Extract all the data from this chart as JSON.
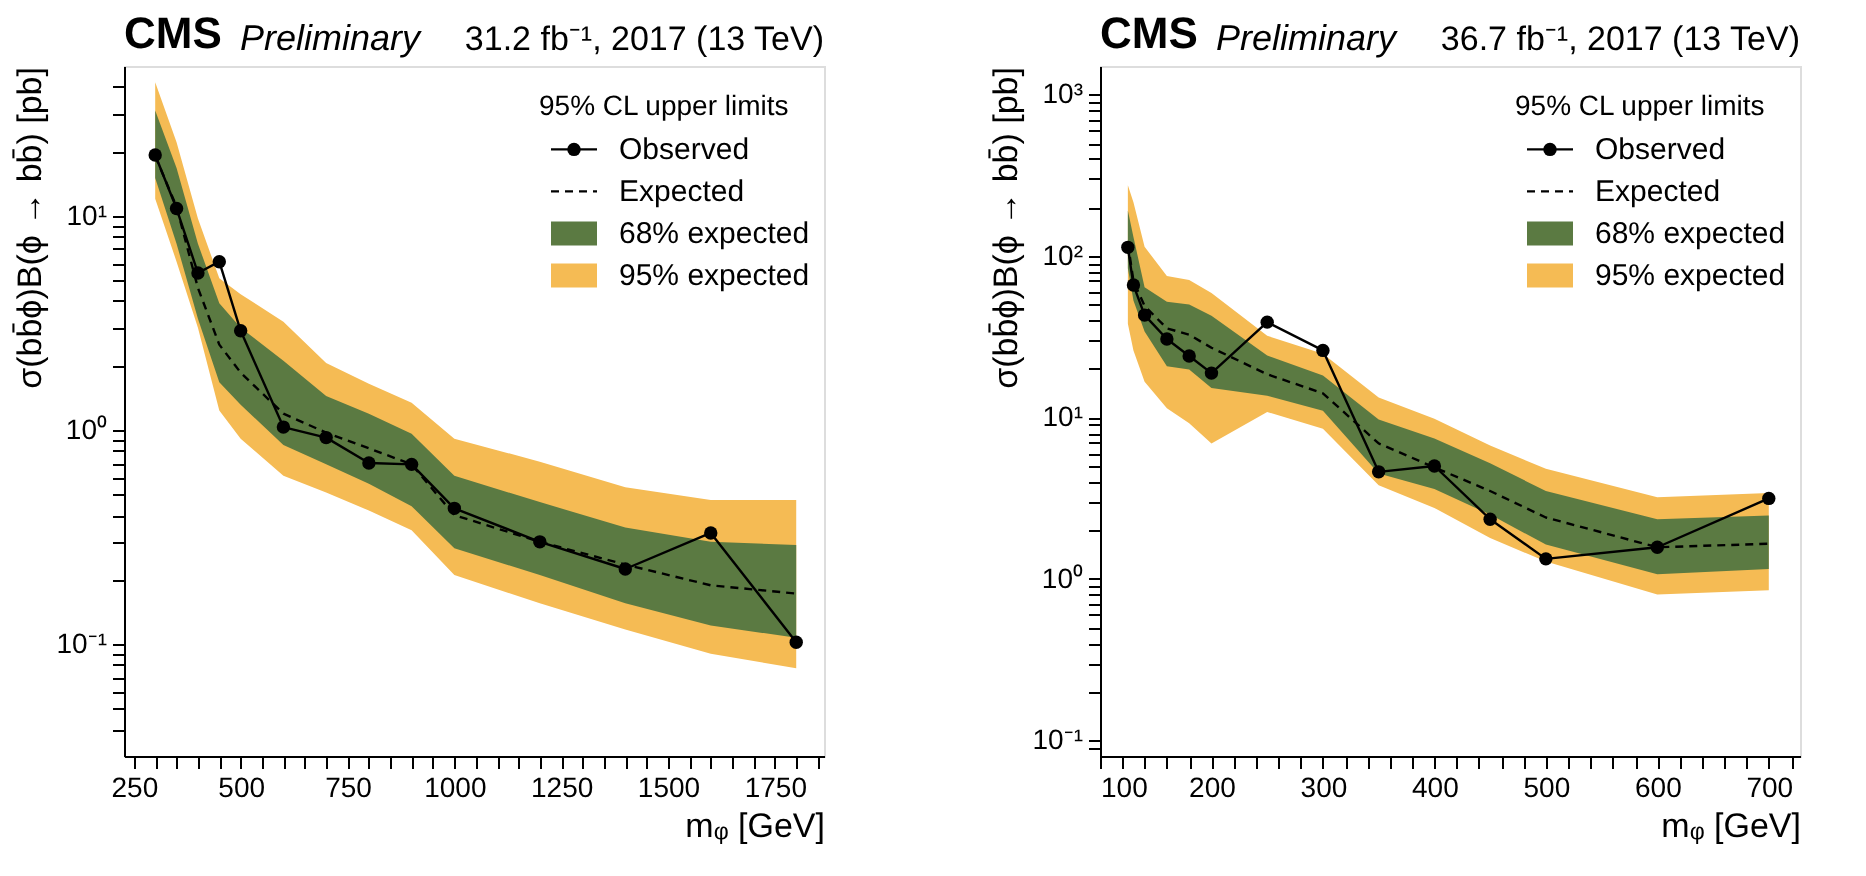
{
  "chart_data": [
    {
      "type": "line",
      "title": "CMS",
      "subtitle": "Preliminary",
      "annotations": [
        "31.2 fb⁻¹, 2017 (13 TeV)"
      ],
      "xlabel": "mᵩ [GeV]",
      "ylabel": "σ(bb̄ϕ)B(ϕ → bb̄) [pb]",
      "legend_title": "95% CL upper limits",
      "legend": "top right",
      "log": "y",
      "grid": false,
      "x": [
        300,
        350,
        400,
        450,
        500,
        600,
        700,
        800,
        900,
        1000,
        1200,
        1400,
        1600,
        1800
      ],
      "xlim": [
        227,
        1865
      ],
      "ylim": [
        0.03,
        50
      ],
      "xticks": [
        250,
        {
          "value": 300,
          "label": null
        },
        {
          "value": 350,
          "label": null
        },
        {
          "value": 400,
          "label": null
        },
        {
          "value": 450,
          "label": null
        },
        500,
        {
          "value": 550,
          "label": null
        },
        {
          "value": 600,
          "label": null
        },
        {
          "value": 650,
          "label": null
        },
        {
          "value": 700,
          "label": null
        },
        750,
        {
          "value": 800,
          "label": null
        },
        {
          "value": 850,
          "label": null
        },
        {
          "value": 900,
          "label": null
        },
        {
          "value": 950,
          "label": null
        },
        1000,
        {
          "value": 1050,
          "label": null
        },
        {
          "value": 1100,
          "label": null
        },
        {
          "value": 1150,
          "label": null
        },
        {
          "value": 1200,
          "label": null
        },
        1250,
        {
          "value": 1300,
          "label": null
        },
        {
          "value": 1350,
          "label": null
        },
        {
          "value": 1400,
          "label": null
        },
        {
          "value": 1450,
          "label": null
        },
        1500,
        {
          "value": 1550,
          "label": null
        },
        {
          "value": 1600,
          "label": null
        },
        {
          "value": 1650,
          "label": null
        },
        {
          "value": 1700,
          "label": null
        },
        1750,
        {
          "value": 1800,
          "label": null
        },
        {
          "value": 1850,
          "label": null
        }
      ],
      "yticks": [
        {
          "value": 0.04,
          "label": null
        },
        {
          "value": 0.05,
          "label": null
        },
        {
          "value": 0.06,
          "label": null
        },
        {
          "value": 0.07,
          "label": null
        },
        {
          "value": 0.08,
          "label": null
        },
        {
          "value": 0.09,
          "label": null
        },
        {
          "value": 0.1,
          "label": "10⁻¹"
        },
        {
          "value": 0.2,
          "label": null
        },
        {
          "value": 0.3,
          "label": null
        },
        {
          "value": 0.4,
          "label": null
        },
        {
          "value": 0.5,
          "label": null
        },
        {
          "value": 0.6,
          "label": null
        },
        {
          "value": 0.7,
          "label": null
        },
        {
          "value": 0.8,
          "label": null
        },
        {
          "value": 0.9,
          "label": null
        },
        {
          "value": 1,
          "label": "10⁰"
        },
        {
          "value": 2,
          "label": null
        },
        {
          "value": 3,
          "label": null
        },
        {
          "value": 4,
          "label": null
        },
        {
          "value": 5,
          "label": null
        },
        {
          "value": 6,
          "label": null
        },
        {
          "value": 7,
          "label": null
        },
        {
          "value": 8,
          "label": null
        },
        {
          "value": 9,
          "label": null
        },
        {
          "value": 10,
          "label": "10¹"
        },
        {
          "value": 20,
          "label": null
        },
        {
          "value": 30,
          "label": null
        },
        {
          "value": 40,
          "label": null
        }
      ],
      "series": [
        {
          "name": "Observed",
          "type": "line",
          "color": "#000000",
          "marker": "circle",
          "line_style": "solid",
          "values": [
            19.2,
            10.8,
            5.4,
            6.1,
            2.9,
            1.03,
            0.92,
            0.7,
            0.69,
            0.43,
            0.3,
            0.224,
            0.33,
            0.102
          ]
        },
        {
          "name": "Expected",
          "type": "line",
          "color": "#000000",
          "marker": "none",
          "line_style": "dashed",
          "values": [
            19,
            11,
            4.6,
            2.5,
            1.85,
            1.19,
            0.97,
            0.82,
            0.69,
            0.4,
            0.3,
            0.235,
            0.188,
            0.172
          ]
        },
        {
          "name": "95% expected",
          "type": "area",
          "color": "#f5bb54",
          "values": [
            null,
            null,
            null,
            null,
            null,
            null,
            null,
            null,
            null,
            null,
            null,
            null,
            null,
            null
          ],
          "lower": [
            12,
            6.1,
            3.0,
            1.23,
            0.91,
            0.61,
            0.51,
            0.42,
            0.34,
            0.21,
            0.155,
            0.117,
            0.09,
            0.077
          ],
          "upper": [
            42,
            22,
            9.7,
            5.1,
            4.3,
            3.2,
            2.05,
            1.64,
            1.34,
            0.91,
            0.71,
            0.54,
            0.47,
            0.47
          ]
        },
        {
          "name": "68% expected",
          "type": "area",
          "color": "#5b7a42",
          "values": [
            null,
            null,
            null,
            null,
            null,
            null,
            null,
            null,
            null,
            null,
            null,
            null,
            null,
            null
          ],
          "lower": [
            15,
            7.4,
            3.3,
            1.67,
            1.31,
            0.85,
            0.69,
            0.56,
            0.44,
            0.28,
            0.21,
            0.155,
            0.122,
            0.107
          ],
          "upper": [
            31,
            16.7,
            7.4,
            3.9,
            3.0,
            2.1,
            1.44,
            1.19,
            0.96,
            0.61,
            0.46,
            0.35,
            0.3,
            0.29
          ]
        }
      ]
    },
    {
      "type": "line",
      "title": "CMS",
      "subtitle": "Preliminary",
      "annotations": [
        "36.7 fb⁻¹, 2017 (13 TeV)"
      ],
      "xlabel": "mᵩ [GeV]",
      "ylabel": "σ(bb̄ϕ)B(ϕ → bb̄) [pb]",
      "legend_title": "95% CL upper limits",
      "legend": "top right",
      "log": "y",
      "grid": false,
      "x": [
        125,
        130,
        140,
        160,
        180,
        200,
        250,
        300,
        350,
        400,
        450,
        500,
        600,
        700
      ],
      "xlim": [
        100,
        728
      ],
      "ylim": [
        0.08,
        1500
      ],
      "xticks": [
        100,
        {
          "value": 120,
          "label": null
        },
        {
          "value": 140,
          "label": null
        },
        {
          "value": 160,
          "label": null
        },
        {
          "value": 180,
          "label": null
        },
        200,
        {
          "value": 220,
          "label": null
        },
        {
          "value": 240,
          "label": null
        },
        {
          "value": 260,
          "label": null
        },
        {
          "value": 280,
          "label": null
        },
        300,
        {
          "value": 320,
          "label": null
        },
        {
          "value": 340,
          "label": null
        },
        {
          "value": 360,
          "label": null
        },
        {
          "value": 380,
          "label": null
        },
        400,
        {
          "value": 420,
          "label": null
        },
        {
          "value": 440,
          "label": null
        },
        {
          "value": 460,
          "label": null
        },
        {
          "value": 480,
          "label": null
        },
        500,
        {
          "value": 520,
          "label": null
        },
        {
          "value": 540,
          "label": null
        },
        {
          "value": 560,
          "label": null
        },
        {
          "value": 580,
          "label": null
        },
        600,
        {
          "value": 620,
          "label": null
        },
        {
          "value": 640,
          "label": null
        },
        {
          "value": 660,
          "label": null
        },
        {
          "value": 680,
          "label": null
        },
        700,
        {
          "value": 720,
          "label": null
        }
      ],
      "yticks": [
        {
          "value": 0.09,
          "label": null
        },
        {
          "value": 0.1,
          "label": "10⁻¹"
        },
        {
          "value": 0.2,
          "label": null
        },
        {
          "value": 0.3,
          "label": null
        },
        {
          "value": 0.4,
          "label": null
        },
        {
          "value": 0.5,
          "label": null
        },
        {
          "value": 0.6,
          "label": null
        },
        {
          "value": 0.7,
          "label": null
        },
        {
          "value": 0.8,
          "label": null
        },
        {
          "value": 0.9,
          "label": null
        },
        {
          "value": 1,
          "label": "10⁰"
        },
        {
          "value": 2,
          "label": null
        },
        {
          "value": 3,
          "label": null
        },
        {
          "value": 4,
          "label": null
        },
        {
          "value": 5,
          "label": null
        },
        {
          "value": 6,
          "label": null
        },
        {
          "value": 7,
          "label": null
        },
        {
          "value": 8,
          "label": null
        },
        {
          "value": 9,
          "label": null
        },
        {
          "value": 10,
          "label": "10¹"
        },
        {
          "value": 20,
          "label": null
        },
        {
          "value": 30,
          "label": null
        },
        {
          "value": 40,
          "label": null
        },
        {
          "value": 50,
          "label": null
        },
        {
          "value": 60,
          "label": null
        },
        {
          "value": 70,
          "label": null
        },
        {
          "value": 80,
          "label": null
        },
        {
          "value": 90,
          "label": null
        },
        {
          "value": 100,
          "label": "10²"
        },
        {
          "value": 200,
          "label": null
        },
        {
          "value": 300,
          "label": null
        },
        {
          "value": 400,
          "label": null
        },
        {
          "value": 500,
          "label": null
        },
        {
          "value": 600,
          "label": null
        },
        {
          "value": 700,
          "label": null
        },
        {
          "value": 800,
          "label": null
        },
        {
          "value": 900,
          "label": null
        },
        {
          "value": 1000,
          "label": "10³"
        }
      ],
      "series": [
        {
          "name": "Observed",
          "type": "line",
          "color": "#000000",
          "marker": "circle",
          "line_style": "solid",
          "values": [
            113,
            66,
            43,
            30.6,
            24,
            18.8,
            38.9,
            26,
            4.6,
            5.0,
            2.34,
            1.33,
            1.57,
            3.15
          ]
        },
        {
          "name": "Expected",
          "type": "line",
          "color": "#000000",
          "marker": "none",
          "line_style": "dashed",
          "values": [
            120,
            70,
            49,
            35.6,
            32.5,
            27,
            18.5,
            14.1,
            6.9,
            4.9,
            3.5,
            2.4,
            1.57,
            1.65
          ]
        },
        {
          "name": "95% expected",
          "type": "area",
          "color": "#f5bb54",
          "values": [
            null,
            null,
            null,
            null,
            null,
            null,
            null,
            null,
            null,
            null,
            null,
            null,
            null,
            null
          ],
          "lower": [
            38,
            26,
            16.6,
            11.4,
            9.2,
            6.9,
            10.8,
            8.5,
            3.8,
            2.75,
            1.79,
            1.28,
            0.8,
            0.85
          ],
          "upper": [
            274,
            215,
            114,
            75,
            71,
            59,
            32,
            24.8,
            13.3,
            9.8,
            6.7,
            4.8,
            3.2,
            3.4
          ]
        },
        {
          "name": "68% expected",
          "type": "area",
          "color": "#5b7a42",
          "values": [
            null,
            null,
            null,
            null,
            null,
            null,
            null,
            null,
            null,
            null,
            null,
            null,
            null,
            null
          ],
          "lower": [
            84,
            53,
            34,
            20.7,
            19.8,
            15.2,
            13.6,
            11,
            4.5,
            3.6,
            2.5,
            1.63,
            1.07,
            1.15
          ],
          "upper": [
            191,
            131,
            64,
            52,
            50,
            42.6,
            24.2,
            18.2,
            9.7,
            7.4,
            5.2,
            3.5,
            2.34,
            2.47
          ]
        }
      ]
    }
  ]
}
